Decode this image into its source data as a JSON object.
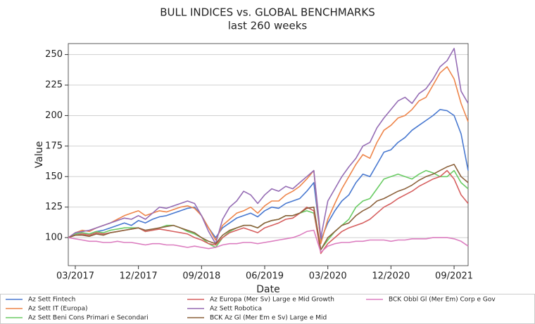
{
  "chart_data": {
    "type": "line",
    "title": "BULL INDICES vs. GLOBAL BENCHMARKS",
    "subtitle": "last 260 weeks",
    "x_label": "Date",
    "y_label": "Value",
    "grid": true,
    "legend": "below",
    "x": [
      "2017-02",
      "2017-03",
      "2017-04",
      "2017-05",
      "2017-06",
      "2017-07",
      "2017-08",
      "2017-09",
      "2017-10",
      "2017-11",
      "2017-12",
      "2018-01",
      "2018-02",
      "2018-03",
      "2018-04",
      "2018-05",
      "2018-06",
      "2018-07",
      "2018-08",
      "2018-09",
      "2018-10",
      "2018-11",
      "2018-12",
      "2019-01",
      "2019-02",
      "2019-03",
      "2019-04",
      "2019-05",
      "2019-06",
      "2019-07",
      "2019-08",
      "2019-09",
      "2019-10",
      "2019-11",
      "2019-12",
      "2020-01",
      "2020-02",
      "2020-03",
      "2020-04",
      "2020-05",
      "2020-06",
      "2020-07",
      "2020-08",
      "2020-09",
      "2020-10",
      "2020-11",
      "2020-12",
      "2021-01",
      "2021-02",
      "2021-03",
      "2021-04",
      "2021-05",
      "2021-06",
      "2021-07",
      "2021-08",
      "2021-09",
      "2021-10",
      "2021-11"
    ],
    "xlim": [
      "2017-02",
      "2021-11"
    ],
    "xticks": [
      {
        "value": "2017-03",
        "label": "03/2017"
      },
      {
        "value": "2017-12",
        "label": "12/2017"
      },
      {
        "value": "2018-09",
        "label": "09/2018"
      },
      {
        "value": "2019-06",
        "label": "06/2019"
      },
      {
        "value": "2020-03",
        "label": "03/2020"
      },
      {
        "value": "2020-12",
        "label": "12/2020"
      },
      {
        "value": "2021-09",
        "label": "09/2021"
      }
    ],
    "ylim": [
      77,
      259
    ],
    "yticks": [
      100,
      125,
      150,
      175,
      200,
      225,
      250
    ],
    "series": [
      {
        "name": "Az Sett Fintech",
        "color": "#4878d0",
        "values": [
          100,
          103,
          104,
          103,
          105,
          106,
          108,
          110,
          112,
          110,
          114,
          112,
          115,
          117,
          118,
          120,
          122,
          124,
          125,
          118,
          108,
          100,
          108,
          112,
          116,
          118,
          120,
          117,
          122,
          125,
          124,
          128,
          130,
          132,
          138,
          145,
          98,
          112,
          122,
          130,
          135,
          145,
          152,
          150,
          160,
          170,
          172,
          178,
          182,
          188,
          192,
          196,
          200,
          205,
          204,
          200,
          185,
          155
        ]
      },
      {
        "name": "Az Sett IT (Europa)",
        "color": "#ee854a",
        "values": [
          100,
          104,
          106,
          105,
          108,
          110,
          112,
          115,
          118,
          120,
          122,
          118,
          120,
          122,
          121,
          123,
          125,
          126,
          124,
          118,
          108,
          98,
          110,
          115,
          120,
          122,
          125,
          120,
          126,
          130,
          130,
          135,
          138,
          142,
          148,
          155,
          95,
          115,
          128,
          140,
          150,
          160,
          168,
          165,
          178,
          188,
          192,
          198,
          200,
          205,
          212,
          215,
          225,
          235,
          240,
          230,
          210,
          195
        ]
      },
      {
        "name": "Az Sett Beni Cons Primari e Secondari",
        "color": "#6acc64",
        "values": [
          100,
          103,
          104,
          103,
          105,
          104,
          106,
          107,
          108,
          108,
          108,
          105,
          106,
          108,
          110,
          110,
          108,
          105,
          103,
          100,
          95,
          92,
          100,
          105,
          108,
          110,
          110,
          108,
          112,
          114,
          115,
          118,
          118,
          120,
          122,
          120,
          90,
          98,
          105,
          110,
          115,
          125,
          130,
          132,
          140,
          148,
          150,
          152,
          150,
          148,
          152,
          155,
          153,
          150,
          150,
          155,
          145,
          140
        ]
      },
      {
        "name": "Az Europa (Mer Sv) Large e Mid Growth",
        "color": "#d65f5f",
        "values": [
          100,
          102,
          103,
          102,
          104,
          103,
          104,
          105,
          106,
          107,
          108,
          105,
          106,
          107,
          106,
          105,
          104,
          103,
          100,
          98,
          95,
          94,
          100,
          104,
          106,
          108,
          106,
          104,
          108,
          110,
          112,
          115,
          116,
          120,
          125,
          122,
          87,
          95,
          100,
          105,
          108,
          110,
          112,
          115,
          120,
          125,
          128,
          132,
          135,
          138,
          142,
          145,
          148,
          150,
          155,
          148,
          135,
          128
        ]
      },
      {
        "name": "Az Sett Robotica",
        "color": "#956cb4",
        "values": [
          100,
          104,
          105,
          106,
          108,
          110,
          112,
          114,
          116,
          115,
          118,
          115,
          120,
          125,
          124,
          126,
          128,
          130,
          128,
          118,
          105,
          95,
          115,
          125,
          130,
          138,
          135,
          128,
          135,
          140,
          138,
          142,
          140,
          145,
          150,
          155,
          100,
          130,
          140,
          150,
          158,
          165,
          175,
          178,
          190,
          198,
          205,
          212,
          215,
          210,
          218,
          222,
          230,
          240,
          245,
          255,
          220,
          210
        ]
      },
      {
        "name": "BCK Az Gl (Mer Em e Sv) Large e Mid",
        "color": "#8c613c",
        "values": [
          100,
          102,
          102,
          101,
          103,
          102,
          104,
          105,
          106,
          107,
          108,
          106,
          107,
          108,
          109,
          110,
          108,
          106,
          104,
          100,
          97,
          95,
          102,
          106,
          108,
          110,
          110,
          108,
          112,
          114,
          115,
          118,
          118,
          120,
          124,
          125,
          90,
          100,
          105,
          110,
          112,
          118,
          122,
          125,
          130,
          132,
          135,
          138,
          140,
          143,
          147,
          150,
          152,
          155,
          158,
          160,
          150,
          145
        ]
      },
      {
        "name": "BCK Obbl Gl (Mer Em) Corp e Gov",
        "color": "#dc7ec0",
        "values": [
          100,
          99,
          98,
          97,
          97,
          96,
          96,
          97,
          96,
          96,
          95,
          94,
          95,
          95,
          94,
          94,
          93,
          92,
          93,
          92,
          91,
          92,
          94,
          95,
          95,
          96,
          96,
          95,
          96,
          97,
          98,
          99,
          100,
          102,
          105,
          106,
          88,
          93,
          95,
          96,
          96,
          97,
          97,
          98,
          98,
          98,
          97,
          98,
          98,
          99,
          99,
          99,
          100,
          100,
          100,
          99,
          97,
          93
        ]
      }
    ]
  }
}
